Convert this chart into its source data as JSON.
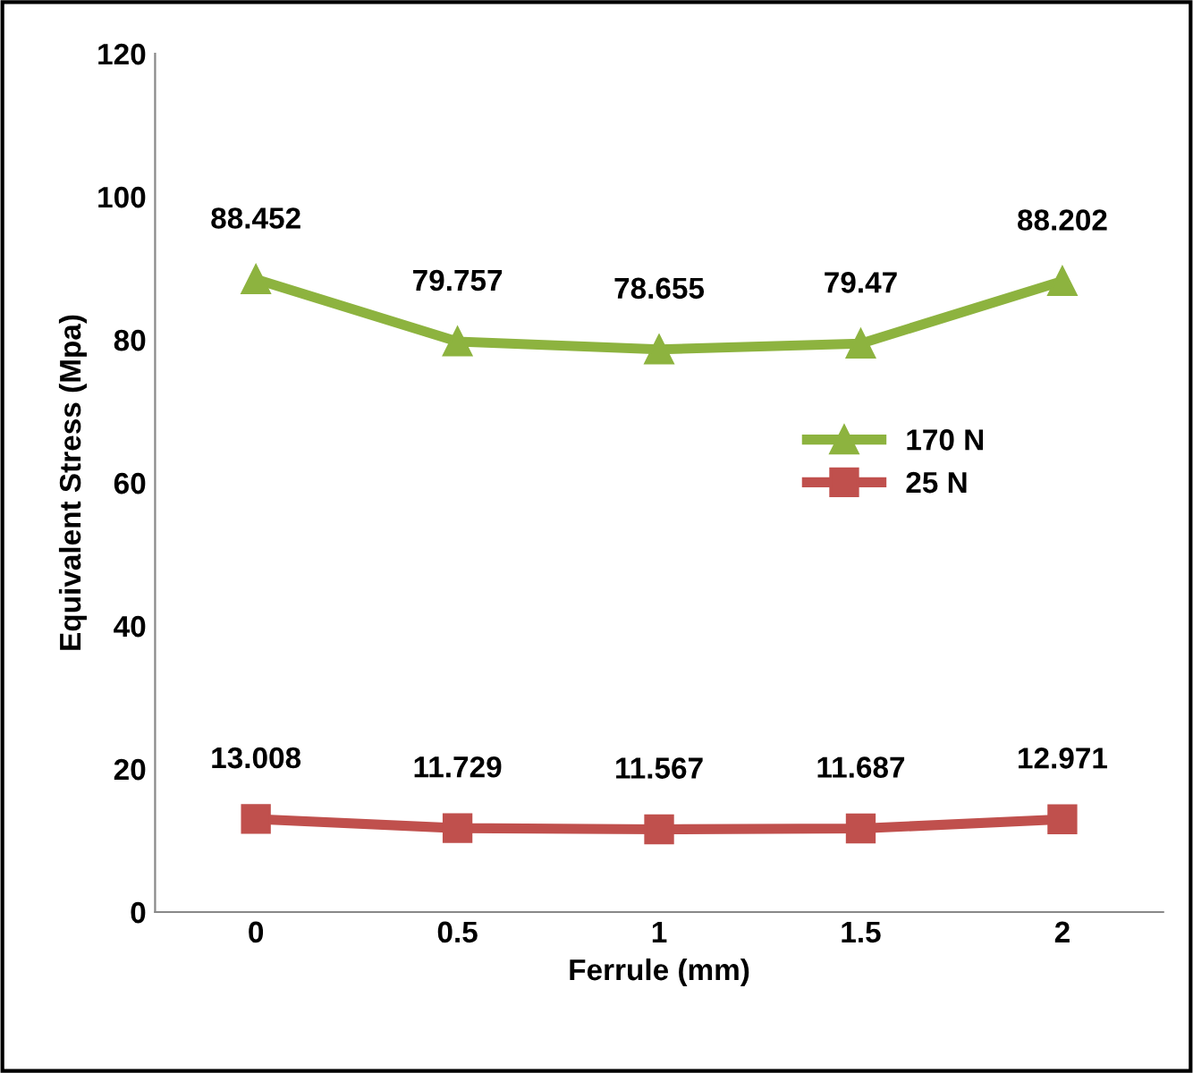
{
  "chart_data": {
    "type": "line",
    "xlabel": "Ferrule (mm)",
    "ylabel": "Equivalent Stress (Mpa)",
    "categories": [
      "0",
      "0.5",
      "1",
      "1.5",
      "2"
    ],
    "series": [
      {
        "name": "170 N",
        "color": "#8db33f",
        "marker": "triangle",
        "values": [
          88.452,
          79.757,
          78.655,
          79.47,
          88.202
        ]
      },
      {
        "name": "25 N",
        "color": "#c0504d",
        "marker": "square",
        "values": [
          13.008,
          11.729,
          11.567,
          11.687,
          12.971
        ]
      }
    ],
    "ylim": [
      0,
      120
    ],
    "yticks": [
      0,
      20,
      40,
      60,
      80,
      100,
      120
    ],
    "grid": false,
    "legend": "right",
    "data_labels": true,
    "line_style": "solid"
  }
}
